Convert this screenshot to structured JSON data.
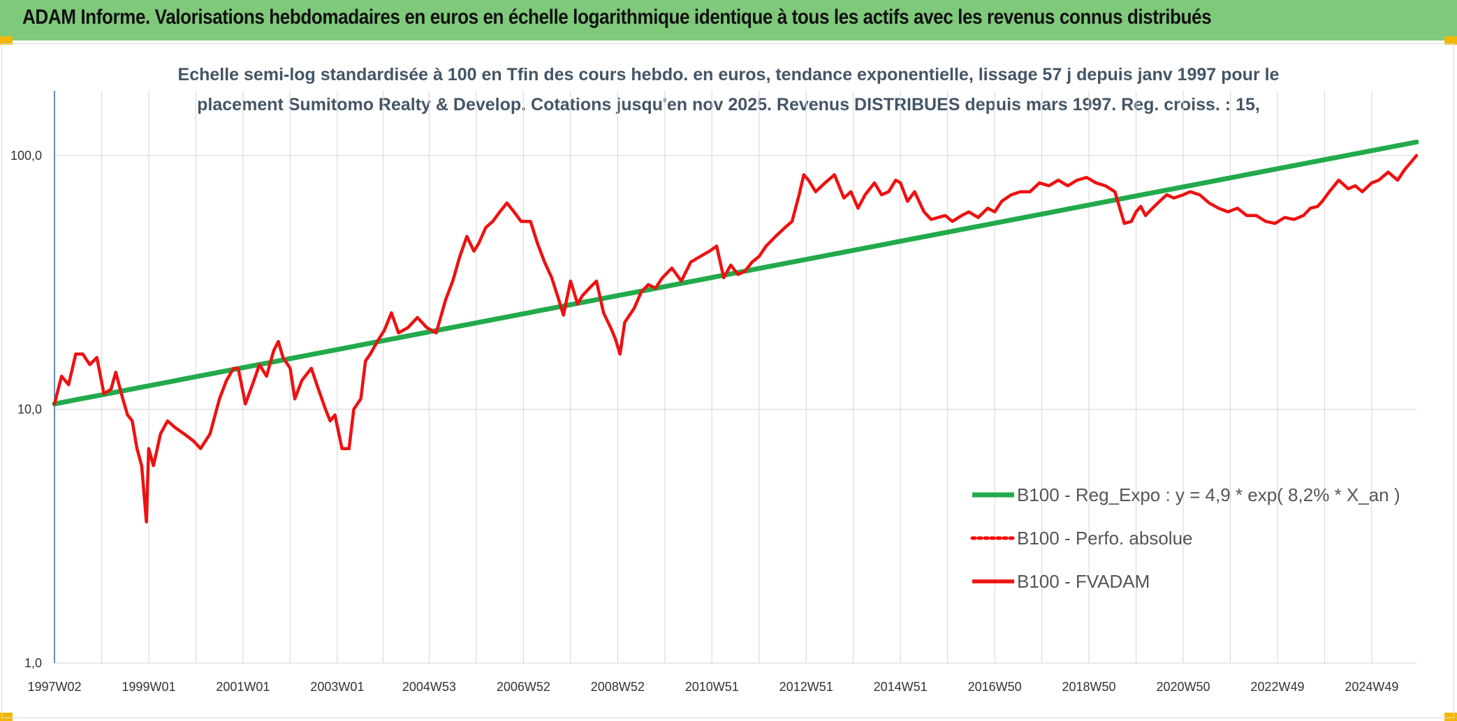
{
  "header": {
    "title": "ADAM Informe. Valorisations hebdomadaires en euros en échelle logarithmique identique à tous les actifs avec les revenus connus distribués",
    "banner_color": "#7fc97a",
    "corner_color": "#f2b705"
  },
  "chart_data": {
    "type": "line",
    "title_lines": [
      "Echelle semi-log standardisée à 100 en Tfin des cours hebdo. en euros, tendance exponentielle, lissage 57 j depuis janv 1997 pour le",
      "placement Sumitomo Realty & Develop. Cotations jusqu'en nov 2025. Revenus DISTRIBUES depuis mars 1997. Reg. croiss. : 15,"
    ],
    "y_scale": "log",
    "ylim": [
      1,
      180
    ],
    "y_ticks": [
      1,
      10,
      100
    ],
    "y_tick_labels": [
      "1,0",
      "10,0",
      "100,0"
    ],
    "xlim": [
      1997.0,
      2025.9
    ],
    "x_ticks": [
      1997.0,
      1999.0,
      2001.0,
      2003.0,
      2004.95,
      2006.95,
      2008.95,
      2010.95,
      2012.95,
      2014.95,
      2016.95,
      2018.95,
      2020.95,
      2022.95,
      2024.95
    ],
    "x_tick_labels": [
      "1997W02",
      "1999W01",
      "2001W01",
      "2003W01",
      "2004W53",
      "2006W52",
      "2008W52",
      "2010W51",
      "2012W51",
      "2014W51",
      "2016W50",
      "2018W50",
      "2020W50",
      "2022W49",
      "2024W49"
    ],
    "grid": true,
    "legend_position": "bottom-right",
    "colors": {
      "trend": "#22aa4c",
      "perf": "#ff0000",
      "fvadam": "#ee1111"
    },
    "series": [
      {
        "name": "B100 - Reg_Expo : y = 4,9 * exp( 8,2% *  X_an )",
        "style": "solid-green",
        "x": [
          1997.0,
          2025.9
        ],
        "values": [
          10.5,
          113
        ]
      },
      {
        "name": "B100 - Perfo. absolue",
        "style": "dotted-red",
        "x": [],
        "values": []
      },
      {
        "name": "B100 - FVADAM",
        "style": "solid-red",
        "x": [
          1997.0,
          1997.15,
          1997.3,
          1997.45,
          1997.6,
          1997.75,
          1997.9,
          1998.05,
          1998.2,
          1998.3,
          1998.45,
          1998.55,
          1998.65,
          1998.75,
          1998.85,
          1998.95,
          1999.0,
          1999.1,
          1999.25,
          1999.4,
          1999.55,
          1999.75,
          1999.95,
          2000.1,
          2000.3,
          2000.5,
          2000.65,
          2000.8,
          2000.9,
          2001.05,
          2001.2,
          2001.35,
          2001.5,
          2001.65,
          2001.75,
          2001.85,
          2002.0,
          2002.1,
          2002.25,
          2002.45,
          2002.6,
          2002.75,
          2002.85,
          2002.95,
          2003.1,
          2003.25,
          2003.35,
          2003.5,
          2003.6,
          2003.7,
          2003.85,
          2004.0,
          2004.15,
          2004.3,
          2004.5,
          2004.7,
          2004.9,
          2005.1,
          2005.3,
          2005.45,
          2005.6,
          2005.75,
          2005.9,
          2006.0,
          2006.15,
          2006.3,
          2006.45,
          2006.6,
          2006.75,
          2006.9,
          2007.1,
          2007.25,
          2007.4,
          2007.55,
          2007.7,
          2007.8,
          2007.95,
          2008.1,
          2008.2,
          2008.35,
          2008.5,
          2008.65,
          2008.8,
          2008.9,
          2009.0,
          2009.1,
          2009.3,
          2009.45,
          2009.6,
          2009.75,
          2009.9,
          2010.1,
          2010.3,
          2010.5,
          2010.7,
          2010.9,
          2011.05,
          2011.2,
          2011.35,
          2011.5,
          2011.65,
          2011.8,
          2011.95,
          2012.1,
          2012.3,
          2012.5,
          2012.65,
          2012.8,
          2012.9,
          2013.0,
          2013.15,
          2013.35,
          2013.55,
          2013.75,
          2013.9,
          2014.05,
          2014.2,
          2014.4,
          2014.55,
          2014.7,
          2014.85,
          2014.95,
          2015.1,
          2015.25,
          2015.45,
          2015.6,
          2015.75,
          2015.9,
          2016.05,
          2016.25,
          2016.4,
          2016.6,
          2016.8,
          2016.95,
          2017.1,
          2017.3,
          2017.5,
          2017.7,
          2017.9,
          2018.1,
          2018.3,
          2018.5,
          2018.7,
          2018.9,
          2019.1,
          2019.3,
          2019.5,
          2019.7,
          2019.85,
          2019.95,
          2020.05,
          2020.15,
          2020.3,
          2020.45,
          2020.6,
          2020.75,
          2020.95,
          2021.1,
          2021.3,
          2021.5,
          2021.7,
          2021.9,
          2022.1,
          2022.3,
          2022.5,
          2022.7,
          2022.9,
          2023.1,
          2023.3,
          2023.5,
          2023.65,
          2023.8,
          2023.9,
          2024.05,
          2024.25,
          2024.45,
          2024.6,
          2024.75,
          2024.95,
          2025.1,
          2025.3,
          2025.5,
          2025.65,
          2025.8,
          2025.9
        ],
        "values": [
          10.5,
          13.5,
          12.5,
          16.5,
          16.5,
          15,
          16,
          11.5,
          12,
          14,
          11,
          9.5,
          9,
          7,
          6,
          3.6,
          7,
          6,
          8,
          9,
          8.5,
          8,
          7.5,
          7,
          8,
          11,
          13,
          14.5,
          14.5,
          10.5,
          12.5,
          15,
          13.5,
          17,
          18.5,
          16,
          14.5,
          11,
          13,
          14.5,
          12,
          10,
          9,
          9.5,
          7,
          7,
          10,
          11,
          15.5,
          16.5,
          18.5,
          20.5,
          24,
          20,
          21,
          23,
          21,
          20,
          27,
          32,
          40,
          48,
          42,
          45,
          52,
          55,
          60,
          65,
          60,
          55,
          55,
          45,
          38,
          33,
          27,
          23.5,
          32,
          26,
          28,
          30,
          32,
          24,
          21,
          19,
          16.5,
          22,
          25,
          29,
          31,
          30,
          33,
          36,
          32,
          38,
          40,
          42,
          44,
          33,
          37,
          34,
          35,
          38,
          40,
          44,
          48,
          52,
          55,
          70,
          84,
          80,
          72,
          78,
          84,
          68,
          72,
          62,
          70,
          78,
          70,
          72,
          80,
          78,
          66,
          72,
          60,
          56,
          57,
          58,
          55,
          58,
          60,
          57,
          62,
          60,
          66,
          70,
          72,
          72,
          78,
          76,
          80,
          76,
          80,
          82,
          78,
          76,
          72,
          54,
          55,
          60,
          63,
          58,
          62,
          66,
          70,
          68,
          70,
          72,
          70,
          65,
          62,
          60,
          62,
          58,
          58,
          55,
          54,
          57,
          56,
          58,
          62,
          63,
          66,
          72,
          80,
          74,
          76,
          72,
          78,
          80,
          86,
          80,
          88,
          95,
          100
        ]
      }
    ]
  }
}
